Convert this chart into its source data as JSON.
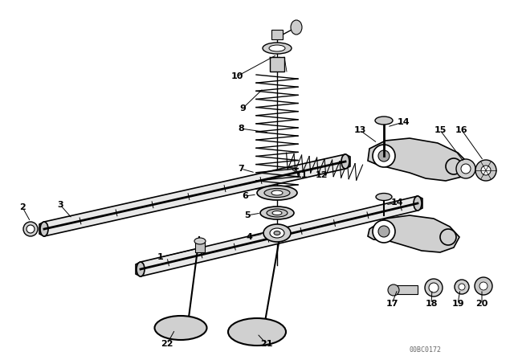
{
  "bg_color": "#ffffff",
  "line_color": "#000000",
  "fig_width": 6.4,
  "fig_height": 4.48,
  "dpi": 100,
  "watermark": "00BC0172"
}
